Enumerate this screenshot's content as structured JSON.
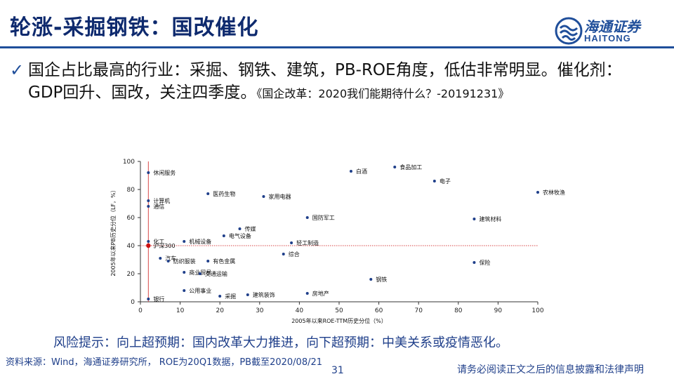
{
  "header": {
    "title": "轮涨-采掘钢铁：国改催化",
    "logo_cn": "海通证券",
    "logo_en": "HAITONG"
  },
  "bullet": {
    "text": "国企占比最高的行业：采掘、钢铁、建筑，PB-ROE角度，低估非常明显。催化剂：GDP回升、国改，关注四季度。",
    "extra": "《国企改革：2020我们能期待什么？-20191231》",
    "icon": "check-icon"
  },
  "chart_data": {
    "type": "scatter",
    "xlabel": "2005年以来ROE-TTM历史分位（%）",
    "ylabel": "2005年以来PB历史分位（LF，%）",
    "xlim": [
      0,
      100
    ],
    "ylim": [
      0,
      100
    ],
    "xticks": [
      0,
      10,
      20,
      30,
      40,
      50,
      60,
      70,
      80,
      90,
      100
    ],
    "yticks": [
      0,
      20,
      40,
      60,
      80,
      100
    ],
    "grid": false,
    "reference_lines": {
      "x": 2,
      "y": 40
    },
    "highlight": {
      "label": "沪深300",
      "x": 2,
      "y": 40
    },
    "points": [
      {
        "label": "休闲服务",
        "x": 2,
        "y": 92
      },
      {
        "label": "计算机",
        "x": 2,
        "y": 72
      },
      {
        "label": "通信",
        "x": 2,
        "y": 68
      },
      {
        "label": "化工",
        "x": 2,
        "y": 43
      },
      {
        "label": "医药生物",
        "x": 17,
        "y": 77
      },
      {
        "label": "家用电器",
        "x": 31,
        "y": 75
      },
      {
        "label": "白酒",
        "x": 53,
        "y": 93
      },
      {
        "label": "食品加工",
        "x": 64,
        "y": 96
      },
      {
        "label": "电子",
        "x": 74,
        "y": 86
      },
      {
        "label": "农林牧渔",
        "x": 100,
        "y": 78
      },
      {
        "label": "国防军工",
        "x": 42,
        "y": 60
      },
      {
        "label": "建筑材料",
        "x": 84,
        "y": 59
      },
      {
        "label": "传媒",
        "x": 25,
        "y": 52
      },
      {
        "label": "机械设备",
        "x": 11,
        "y": 43
      },
      {
        "label": "电气设备",
        "x": 21,
        "y": 47
      },
      {
        "label": "轻工制造",
        "x": 38,
        "y": 42
      },
      {
        "label": "综合",
        "x": 36,
        "y": 34
      },
      {
        "label": "汽车",
        "x": 5,
        "y": 31
      },
      {
        "label": "纺织服装",
        "x": 7,
        "y": 29
      },
      {
        "label": "有色金属",
        "x": 17,
        "y": 29
      },
      {
        "label": "保险",
        "x": 84,
        "y": 28
      },
      {
        "label": "商业贸易",
        "x": 11,
        "y": 21
      },
      {
        "label": "交通运输",
        "x": 15,
        "y": 20
      },
      {
        "label": "钢铁",
        "x": 58,
        "y": 16
      },
      {
        "label": "公用事业",
        "x": 11,
        "y": 8
      },
      {
        "label": "采掘",
        "x": 20,
        "y": 4
      },
      {
        "label": "建筑装饰",
        "x": 27,
        "y": 5
      },
      {
        "label": "房地产",
        "x": 42,
        "y": 6
      },
      {
        "label": "银行",
        "x": 2,
        "y": 2
      }
    ],
    "colors": {
      "point": "#1f3f8a",
      "highlight": "#cc1111",
      "refline": "#d84848"
    }
  },
  "risk_note": "风险提示：向上超预期：国内改革大力推进，向下超预期：中美关系或疫情恶化。",
  "footer": {
    "source": "资料来源：Wind，海通证券研究所， ROE为20Q1数据，PB截至2020/08/21",
    "page": "31",
    "disclaimer": "请务必阅读正文之后的信息披露和法律声明"
  }
}
